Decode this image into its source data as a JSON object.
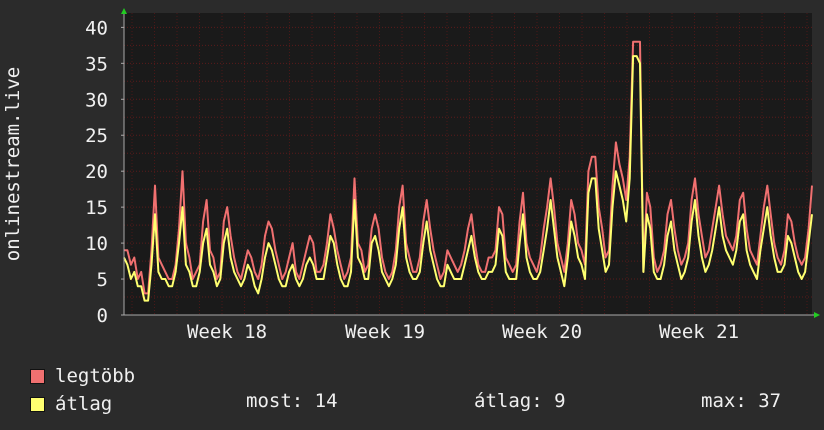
{
  "chart_data": {
    "type": "line",
    "ylabel": "onlinestream.live",
    "ylim": [
      0,
      42
    ],
    "y_ticks": [
      0,
      5,
      10,
      15,
      20,
      25,
      30,
      35,
      40
    ],
    "x_tick_labels": [
      "Week 18",
      "Week 19",
      "Week 20",
      "Week 21"
    ],
    "grid": true,
    "series": [
      {
        "name": "legtöbb",
        "color": "#f07070",
        "values": [
          9,
          9,
          7,
          8,
          5,
          6,
          3,
          3,
          9,
          18,
          8,
          7,
          6,
          5,
          5,
          7,
          12,
          20,
          10,
          8,
          5,
          6,
          7,
          13,
          16,
          9,
          8,
          5,
          6,
          13,
          15,
          11,
          8,
          6,
          5,
          7,
          9,
          8,
          6,
          5,
          7,
          11,
          13,
          12,
          9,
          7,
          5,
          6,
          8,
          10,
          6,
          5,
          7,
          9,
          11,
          10,
          6,
          6,
          7,
          10,
          14,
          12,
          9,
          7,
          5,
          6,
          8,
          19,
          10,
          9,
          6,
          7,
          12,
          14,
          12,
          8,
          6,
          5,
          6,
          9,
          15,
          18,
          10,
          8,
          6,
          6,
          8,
          13,
          16,
          12,
          9,
          7,
          5,
          6,
          9,
          8,
          7,
          6,
          7,
          9,
          12,
          14,
          10,
          7,
          6,
          6,
          8,
          8,
          9,
          15,
          14,
          8,
          7,
          6,
          7,
          13,
          17,
          10,
          8,
          7,
          6,
          8,
          12,
          15,
          19,
          15,
          10,
          8,
          6,
          10,
          16,
          14,
          10,
          9,
          7,
          20,
          22,
          22,
          15,
          12,
          8,
          9,
          18,
          24,
          21,
          19,
          16,
          22,
          38,
          38,
          38,
          6,
          17,
          15,
          8,
          6,
          7,
          9,
          14,
          16,
          12,
          9,
          7,
          8,
          10,
          16,
          19,
          14,
          11,
          8,
          9,
          12,
          15,
          18,
          14,
          11,
          10,
          9,
          11,
          16,
          17,
          12,
          9,
          8,
          7,
          11,
          15,
          18,
          14,
          10,
          8,
          7,
          9,
          14,
          13,
          10,
          8,
          7,
          8,
          12,
          18
        ]
      },
      {
        "name": "átlag",
        "color": "#ffff70",
        "values": [
          8,
          7,
          5,
          6,
          4,
          4,
          2,
          2,
          7,
          14,
          6,
          5,
          5,
          4,
          4,
          6,
          10,
          15,
          7,
          6,
          4,
          4,
          6,
          10,
          12,
          7,
          6,
          4,
          5,
          10,
          12,
          8,
          6,
          5,
          4,
          5,
          7,
          6,
          4,
          3,
          5,
          8,
          10,
          9,
          7,
          5,
          4,
          4,
          6,
          7,
          5,
          4,
          5,
          7,
          8,
          7,
          5,
          5,
          5,
          8,
          11,
          10,
          7,
          5,
          4,
          4,
          6,
          16,
          8,
          7,
          5,
          5,
          10,
          11,
          9,
          6,
          5,
          4,
          5,
          7,
          12,
          15,
          8,
          6,
          5,
          5,
          6,
          10,
          13,
          9,
          7,
          5,
          4,
          4,
          7,
          6,
          5,
          5,
          5,
          7,
          9,
          11,
          8,
          6,
          5,
          5,
          6,
          6,
          7,
          12,
          11,
          6,
          5,
          5,
          5,
          10,
          14,
          8,
          6,
          5,
          5,
          6,
          9,
          12,
          16,
          12,
          8,
          6,
          4,
          8,
          13,
          11,
          8,
          7,
          5,
          17,
          19,
          19,
          12,
          9,
          6,
          7,
          15,
          20,
          18,
          16,
          13,
          19,
          36,
          36,
          35,
          6,
          14,
          12,
          6,
          5,
          5,
          7,
          11,
          13,
          9,
          7,
          5,
          6,
          8,
          13,
          16,
          11,
          8,
          6,
          7,
          9,
          12,
          15,
          11,
          9,
          8,
          7,
          9,
          13,
          14,
          9,
          7,
          6,
          5,
          9,
          12,
          15,
          11,
          8,
          6,
          6,
          7,
          11,
          10,
          8,
          6,
          5,
          6,
          10,
          14
        ]
      }
    ],
    "stats": [
      {
        "label": "most:",
        "value": "14"
      },
      {
        "label": "átlag:",
        "value": "9"
      },
      {
        "label": "max:",
        "value": "37"
      }
    ]
  }
}
